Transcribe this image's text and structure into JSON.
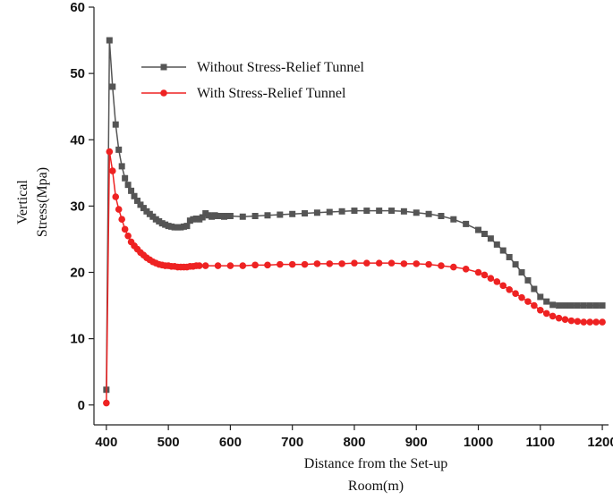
{
  "chart_data": {
    "type": "line",
    "title": "",
    "xlabel_lines": [
      "Distance from the Set-up",
      "Room(m)"
    ],
    "ylabel_lines": [
      "Vertical",
      "Stress(Mpa)"
    ],
    "xlim": [
      380,
      1210
    ],
    "ylim": [
      -3,
      60
    ],
    "x_ticks": [
      400,
      500,
      600,
      700,
      800,
      900,
      1000,
      1100,
      1200
    ],
    "y_ticks": [
      0,
      10,
      20,
      30,
      40,
      50,
      60
    ],
    "legend_position": "top-left",
    "grid": false,
    "series": [
      {
        "name": "Without Stress-Relief Tunnel",
        "color": "#555555",
        "marker": "square",
        "x": [
          400,
          405,
          410,
          415,
          420,
          425,
          430,
          435,
          440,
          445,
          450,
          455,
          460,
          465,
          470,
          475,
          480,
          485,
          490,
          495,
          500,
          505,
          510,
          515,
          520,
          525,
          530,
          535,
          540,
          545,
          550,
          555,
          560,
          565,
          570,
          575,
          580,
          585,
          590,
          595,
          600,
          620,
          640,
          660,
          680,
          700,
          720,
          740,
          760,
          780,
          800,
          820,
          840,
          860,
          880,
          900,
          920,
          940,
          960,
          980,
          1000,
          1010,
          1020,
          1030,
          1040,
          1050,
          1060,
          1070,
          1080,
          1090,
          1100,
          1110,
          1120,
          1130,
          1140,
          1150,
          1160,
          1170,
          1180,
          1190,
          1200
        ],
        "y": [
          2.3,
          55.0,
          48.0,
          42.3,
          38.5,
          36.0,
          34.2,
          33.2,
          32.3,
          31.5,
          30.8,
          30.2,
          29.7,
          29.2,
          28.8,
          28.4,
          28.0,
          27.7,
          27.4,
          27.2,
          27.0,
          26.9,
          26.8,
          26.8,
          26.8,
          26.9,
          27.0,
          27.8,
          28.0,
          28.1,
          28.0,
          28.3,
          28.9,
          28.6,
          28.4,
          28.6,
          28.5,
          28.5,
          28.4,
          28.5,
          28.5,
          28.4,
          28.5,
          28.6,
          28.7,
          28.8,
          28.9,
          29.0,
          29.1,
          29.2,
          29.3,
          29.3,
          29.3,
          29.3,
          29.2,
          29.0,
          28.8,
          28.5,
          28.0,
          27.3,
          26.4,
          25.8,
          25.1,
          24.2,
          23.3,
          22.3,
          21.2,
          20.0,
          18.8,
          17.5,
          16.3,
          15.6,
          15.1,
          15.0,
          15.0,
          15.0,
          15.0,
          15.0,
          15.0,
          15.0,
          15.0
        ]
      },
      {
        "name": "With Stress-Relief Tunnel",
        "color": "#ee2222",
        "marker": "circle",
        "x": [
          400,
          405,
          410,
          415,
          420,
          425,
          430,
          435,
          440,
          445,
          450,
          455,
          460,
          465,
          470,
          475,
          480,
          485,
          490,
          495,
          500,
          505,
          510,
          515,
          520,
          525,
          530,
          535,
          540,
          545,
          550,
          560,
          580,
          600,
          620,
          640,
          660,
          680,
          700,
          720,
          740,
          760,
          780,
          800,
          820,
          840,
          860,
          880,
          900,
          920,
          940,
          960,
          980,
          1000,
          1010,
          1020,
          1030,
          1040,
          1050,
          1060,
          1070,
          1080,
          1090,
          1100,
          1110,
          1120,
          1130,
          1140,
          1150,
          1160,
          1170,
          1180,
          1190,
          1200
        ],
        "y": [
          0.3,
          38.2,
          35.3,
          31.4,
          29.5,
          28.0,
          26.5,
          25.5,
          24.6,
          24.0,
          23.5,
          23.0,
          22.6,
          22.2,
          21.9,
          21.6,
          21.4,
          21.2,
          21.1,
          21.0,
          21.0,
          20.9,
          20.9,
          20.8,
          20.8,
          20.8,
          20.8,
          20.9,
          20.9,
          21.0,
          21.0,
          21.0,
          21.0,
          21.0,
          21.0,
          21.1,
          21.1,
          21.2,
          21.2,
          21.2,
          21.3,
          21.3,
          21.3,
          21.4,
          21.4,
          21.4,
          21.4,
          21.3,
          21.3,
          21.2,
          21.0,
          20.8,
          20.5,
          20.0,
          19.6,
          19.1,
          18.6,
          18.0,
          17.4,
          16.8,
          16.2,
          15.6,
          15.0,
          14.3,
          13.8,
          13.4,
          13.1,
          12.9,
          12.7,
          12.6,
          12.5,
          12.5,
          12.5,
          12.5
        ]
      }
    ]
  }
}
